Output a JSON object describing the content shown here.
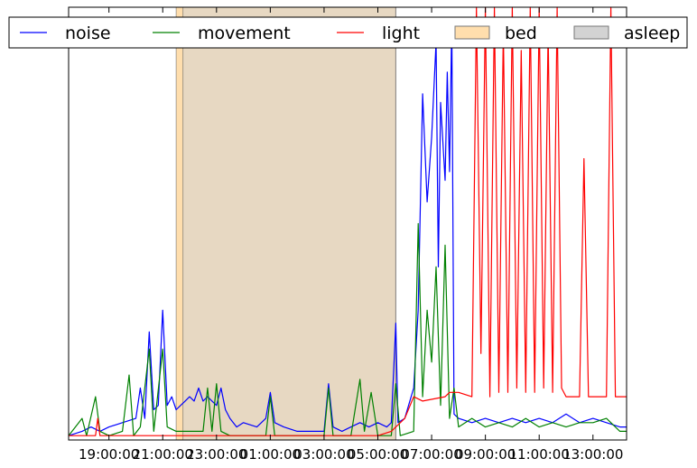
{
  "chart_data": {
    "type": "line",
    "title": "",
    "xlabel": "",
    "ylabel": "",
    "x_start": "17:30",
    "x_end": "14:15",
    "ylim": [
      0,
      1
    ],
    "y_ticks_shown": false,
    "grid": false,
    "legend_placement": "top",
    "x_tick_labels": [
      "19:00:00",
      "21:00:00",
      "23:00:00",
      "01:00:00",
      "03:00:00",
      "05:00:00",
      "07:00:00",
      "09:00:00",
      "11:00:00",
      "13:00:00"
    ],
    "x_tick_times": [
      "19:00",
      "21:00",
      "23:00",
      "01:00",
      "03:00",
      "05:00",
      "07:00",
      "09:00",
      "11:00",
      "13:00"
    ],
    "series": [
      {
        "name": "noise",
        "color": "#0000ff",
        "points": [
          [
            "17:30",
            0.01
          ],
          [
            "18:00",
            0.02
          ],
          [
            "18:20",
            0.03
          ],
          [
            "18:40",
            0.02
          ],
          [
            "19:00",
            0.03
          ],
          [
            "19:30",
            0.04
          ],
          [
            "20:00",
            0.05
          ],
          [
            "20:10",
            0.12
          ],
          [
            "20:20",
            0.05
          ],
          [
            "20:30",
            0.25
          ],
          [
            "20:40",
            0.07
          ],
          [
            "20:50",
            0.08
          ],
          [
            "21:00",
            0.3
          ],
          [
            "21:10",
            0.08
          ],
          [
            "21:20",
            0.1
          ],
          [
            "21:30",
            0.07
          ],
          [
            "21:40",
            0.08
          ],
          [
            "21:50",
            0.09
          ],
          [
            "22:00",
            0.1
          ],
          [
            "22:10",
            0.09
          ],
          [
            "22:20",
            0.12
          ],
          [
            "22:30",
            0.09
          ],
          [
            "22:40",
            0.1
          ],
          [
            "22:50",
            0.09
          ],
          [
            "23:00",
            0.08
          ],
          [
            "23:10",
            0.12
          ],
          [
            "23:20",
            0.07
          ],
          [
            "23:30",
            0.05
          ],
          [
            "23:45",
            0.03
          ],
          [
            "00:00",
            0.04
          ],
          [
            "00:30",
            0.03
          ],
          [
            "00:50",
            0.05
          ],
          [
            "01:00",
            0.11
          ],
          [
            "01:10",
            0.04
          ],
          [
            "01:30",
            0.03
          ],
          [
            "02:00",
            0.02
          ],
          [
            "02:30",
            0.02
          ],
          [
            "03:00",
            0.02
          ],
          [
            "03:10",
            0.13
          ],
          [
            "03:20",
            0.03
          ],
          [
            "03:40",
            0.02
          ],
          [
            "04:00",
            0.03
          ],
          [
            "04:20",
            0.04
          ],
          [
            "04:40",
            0.03
          ],
          [
            "05:00",
            0.04
          ],
          [
            "05:20",
            0.03
          ],
          [
            "05:30",
            0.04
          ],
          [
            "05:40",
            0.27
          ],
          [
            "05:45",
            0.04
          ],
          [
            "06:00",
            0.05
          ],
          [
            "06:20",
            0.12
          ],
          [
            "06:30",
            0.3
          ],
          [
            "06:40",
            0.8
          ],
          [
            "06:50",
            0.55
          ],
          [
            "07:00",
            0.7
          ],
          [
            "07:10",
            0.92
          ],
          [
            "07:15",
            0.4
          ],
          [
            "07:20",
            0.78
          ],
          [
            "07:30",
            0.6
          ],
          [
            "07:35",
            0.85
          ],
          [
            "07:40",
            0.62
          ],
          [
            "07:45",
            0.97
          ],
          [
            "07:50",
            0.06
          ],
          [
            "08:00",
            0.05
          ],
          [
            "08:30",
            0.04
          ],
          [
            "09:00",
            0.05
          ],
          [
            "09:30",
            0.04
          ],
          [
            "10:00",
            0.05
          ],
          [
            "10:30",
            0.04
          ],
          [
            "11:00",
            0.05
          ],
          [
            "11:30",
            0.04
          ],
          [
            "12:00",
            0.06
          ],
          [
            "12:30",
            0.04
          ],
          [
            "13:00",
            0.05
          ],
          [
            "13:30",
            0.04
          ],
          [
            "14:00",
            0.03
          ],
          [
            "14:15",
            0.03
          ]
        ]
      },
      {
        "name": "movement",
        "color": "#008000",
        "points": [
          [
            "17:30",
            0.01
          ],
          [
            "18:00",
            0.05
          ],
          [
            "18:10",
            0.01
          ],
          [
            "18:30",
            0.1
          ],
          [
            "18:40",
            0.02
          ],
          [
            "19:00",
            0.01
          ],
          [
            "19:30",
            0.02
          ],
          [
            "19:45",
            0.15
          ],
          [
            "19:55",
            0.01
          ],
          [
            "20:10",
            0.03
          ],
          [
            "20:30",
            0.21
          ],
          [
            "20:40",
            0.02
          ],
          [
            "21:00",
            0.21
          ],
          [
            "21:10",
            0.03
          ],
          [
            "21:30",
            0.02
          ],
          [
            "22:00",
            0.02
          ],
          [
            "22:30",
            0.02
          ],
          [
            "22:40",
            0.12
          ],
          [
            "22:50",
            0.02
          ],
          [
            "23:00",
            0.13
          ],
          [
            "23:10",
            0.02
          ],
          [
            "23:30",
            0.01
          ],
          [
            "00:00",
            0.01
          ],
          [
            "00:50",
            0.01
          ],
          [
            "01:00",
            0.1
          ],
          [
            "01:10",
            0.01
          ],
          [
            "02:00",
            0.01
          ],
          [
            "03:00",
            0.01
          ],
          [
            "03:10",
            0.12
          ],
          [
            "03:20",
            0.01
          ],
          [
            "04:00",
            0.01
          ],
          [
            "04:20",
            0.14
          ],
          [
            "04:30",
            0.02
          ],
          [
            "04:45",
            0.11
          ],
          [
            "05:00",
            0.01
          ],
          [
            "05:30",
            0.01
          ],
          [
            "05:40",
            0.13
          ],
          [
            "05:50",
            0.01
          ],
          [
            "06:20",
            0.02
          ],
          [
            "06:30",
            0.5
          ],
          [
            "06:40",
            0.1
          ],
          [
            "06:50",
            0.3
          ],
          [
            "07:00",
            0.18
          ],
          [
            "07:10",
            0.4
          ],
          [
            "07:20",
            0.08
          ],
          [
            "07:30",
            0.45
          ],
          [
            "07:40",
            0.05
          ],
          [
            "07:50",
            0.12
          ],
          [
            "08:00",
            0.03
          ],
          [
            "08:30",
            0.05
          ],
          [
            "09:00",
            0.03
          ],
          [
            "09:30",
            0.04
          ],
          [
            "10:00",
            0.03
          ],
          [
            "10:30",
            0.05
          ],
          [
            "11:00",
            0.03
          ],
          [
            "11:30",
            0.04
          ],
          [
            "12:00",
            0.03
          ],
          [
            "12:30",
            0.04
          ],
          [
            "13:00",
            0.04
          ],
          [
            "13:30",
            0.05
          ],
          [
            "14:00",
            0.02
          ],
          [
            "14:15",
            0.02
          ]
        ]
      },
      {
        "name": "light",
        "color": "#ff0000",
        "points": [
          [
            "17:30",
            0.01
          ],
          [
            "18:30",
            0.01
          ],
          [
            "18:35",
            0.05
          ],
          [
            "18:40",
            0.01
          ],
          [
            "21:30",
            0.01
          ],
          [
            "05:00",
            0.01
          ],
          [
            "05:30",
            0.02
          ],
          [
            "06:00",
            0.05
          ],
          [
            "06:20",
            0.1
          ],
          [
            "06:40",
            0.09
          ],
          [
            "07:30",
            0.1
          ],
          [
            "07:40",
            0.11
          ],
          [
            "08:00",
            0.11
          ],
          [
            "08:30",
            0.1
          ],
          [
            "08:40",
            1.0
          ],
          [
            "08:50",
            0.2
          ],
          [
            "09:00",
            1.0
          ],
          [
            "09:10",
            0.1
          ],
          [
            "09:20",
            1.0
          ],
          [
            "09:30",
            0.11
          ],
          [
            "09:40",
            0.95
          ],
          [
            "09:50",
            0.11
          ],
          [
            "10:00",
            1.0
          ],
          [
            "10:10",
            0.12
          ],
          [
            "10:20",
            0.9
          ],
          [
            "10:30",
            0.11
          ],
          [
            "10:40",
            1.0
          ],
          [
            "10:50",
            0.11
          ],
          [
            "11:00",
            1.0
          ],
          [
            "11:10",
            0.12
          ],
          [
            "11:20",
            0.95
          ],
          [
            "11:30",
            0.11
          ],
          [
            "11:40",
            1.0
          ],
          [
            "11:50",
            0.12
          ],
          [
            "12:00",
            0.1
          ],
          [
            "12:30",
            0.1
          ],
          [
            "12:40",
            0.65
          ],
          [
            "12:50",
            0.1
          ],
          [
            "13:00",
            0.1
          ],
          [
            "13:30",
            0.1
          ],
          [
            "13:40",
            1.0
          ],
          [
            "13:50",
            0.1
          ],
          [
            "14:15",
            0.1
          ]
        ]
      }
    ],
    "spans": [
      {
        "name": "bed",
        "color": "#ffdead",
        "start": "21:30",
        "end": "05:40"
      },
      {
        "name": "asleep",
        "color": "#d3d3d3",
        "start": "21:45",
        "end": "05:40"
      }
    ],
    "legend": [
      {
        "label": "noise",
        "kind": "line",
        "color": "#0000ff"
      },
      {
        "label": "movement",
        "kind": "line",
        "color": "#008000"
      },
      {
        "label": "light",
        "kind": "line",
        "color": "#ff0000"
      },
      {
        "label": "bed",
        "kind": "patch",
        "color": "#ffdead"
      },
      {
        "label": "asleep",
        "kind": "patch",
        "color": "#d3d3d3"
      }
    ]
  }
}
